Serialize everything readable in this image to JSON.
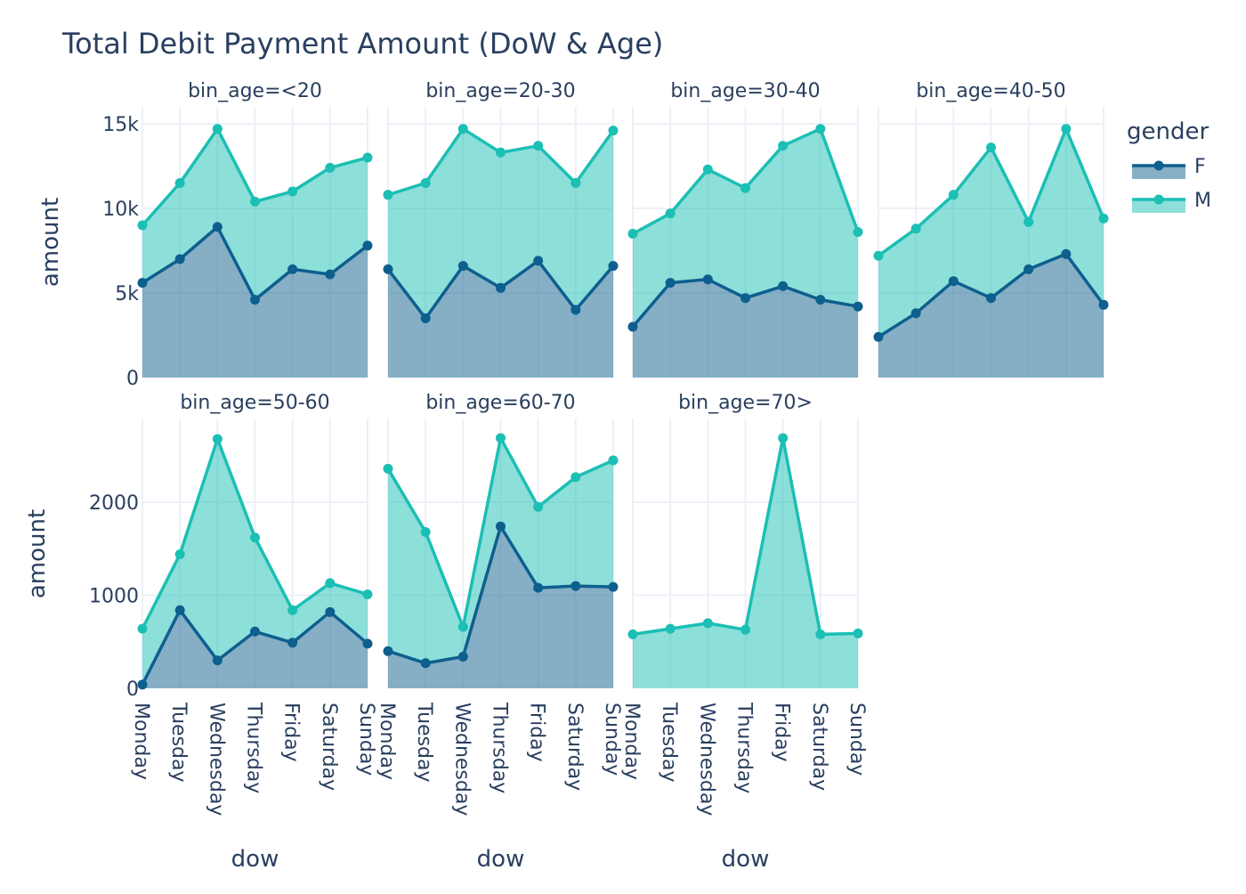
{
  "chart_data": {
    "type": "area",
    "title": "Total Debit Payment Amount (DoW & Age)",
    "xlabel": "dow",
    "ylabel": "amount",
    "x_categories": [
      "Monday",
      "Tuesday",
      "Wednesday",
      "Thursday",
      "Friday",
      "Saturday",
      "Sunday"
    ],
    "legend": {
      "title": "gender",
      "position": "right"
    },
    "colors": {
      "F": "#0d5f8e",
      "M": "#1bbfb4",
      "grid": "#ebf0f8",
      "text": "#2a3f5f"
    },
    "rows": [
      {
        "ylim": [
          0,
          16000
        ],
        "ticks": [
          0,
          5000,
          10000,
          15000
        ],
        "tick_labels": [
          "0",
          "5k",
          "10k",
          "15k"
        ]
      },
      {
        "ylim": [
          0,
          2900
        ],
        "ticks": [
          0,
          1000,
          2000
        ],
        "tick_labels": [
          "0",
          "1000",
          "2000"
        ]
      }
    ],
    "facets": [
      {
        "label": "bin_age=<20",
        "row": 0,
        "col": 0,
        "series": [
          {
            "name": "F",
            "values": [
              5600,
              7000,
              8900,
              4600,
              6400,
              6100,
              7800
            ]
          },
          {
            "name": "M",
            "values": [
              9000,
              11500,
              14700,
              10400,
              11000,
              12400,
              13000
            ]
          }
        ]
      },
      {
        "label": "bin_age=20-30",
        "row": 0,
        "col": 1,
        "series": [
          {
            "name": "F",
            "values": [
              6400,
              3500,
              6600,
              5300,
              6900,
              4000,
              6600
            ]
          },
          {
            "name": "M",
            "values": [
              10800,
              11500,
              14700,
              13300,
              13700,
              11500,
              14600
            ]
          }
        ]
      },
      {
        "label": "bin_age=30-40",
        "row": 0,
        "col": 2,
        "series": [
          {
            "name": "F",
            "values": [
              3000,
              5600,
              5800,
              4700,
              5400,
              4600,
              4200
            ]
          },
          {
            "name": "M",
            "values": [
              8500,
              9700,
              12300,
              11200,
              13700,
              14700,
              8600
            ]
          }
        ]
      },
      {
        "label": "bin_age=40-50",
        "row": 0,
        "col": 3,
        "series": [
          {
            "name": "F",
            "values": [
              2400,
              3800,
              5700,
              4700,
              6400,
              7300,
              4300
            ]
          },
          {
            "name": "M",
            "values": [
              7200,
              8800,
              10800,
              13600,
              9200,
              14700,
              9400
            ]
          }
        ]
      },
      {
        "label": "bin_age=50-60",
        "row": 1,
        "col": 0,
        "series": [
          {
            "name": "F",
            "values": [
              40,
              840,
              300,
              610,
              490,
              820,
              480
            ]
          },
          {
            "name": "M",
            "values": [
              640,
              1440,
              2680,
              1620,
              840,
              1130,
              1010
            ]
          }
        ]
      },
      {
        "label": "bin_age=60-70",
        "row": 1,
        "col": 1,
        "series": [
          {
            "name": "F",
            "values": [
              400,
              270,
              340,
              1740,
              1080,
              1100,
              1090
            ]
          },
          {
            "name": "M",
            "values": [
              2360,
              1680,
              660,
              2690,
              1950,
              2270,
              2450
            ]
          }
        ]
      },
      {
        "label": "bin_age=70>",
        "row": 1,
        "col": 2,
        "series": [
          {
            "name": "F",
            "values": []
          },
          {
            "name": "M",
            "values": [
              580,
              640,
              700,
              630,
              2690,
              580,
              590
            ]
          }
        ]
      }
    ]
  }
}
